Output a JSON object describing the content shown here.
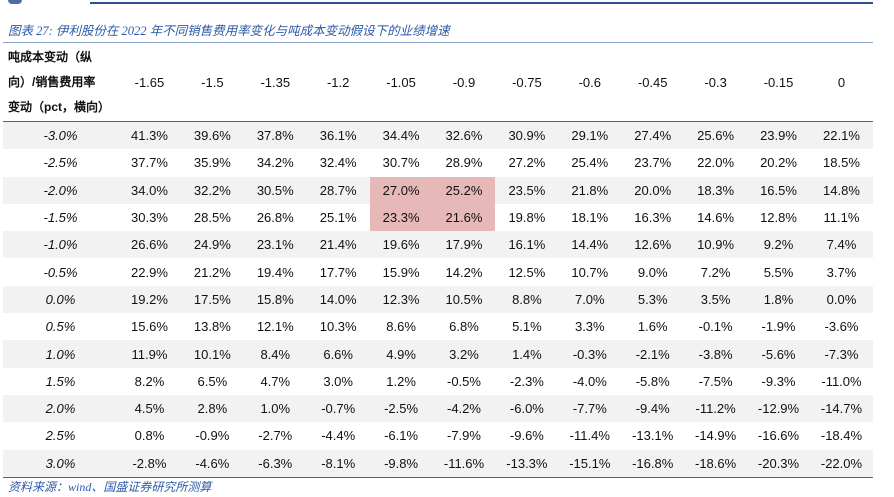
{
  "caption": "图表 27:  伊利股份在 2022 年不同销售费用率变化与吨成本变动假设下的业绩增速",
  "corner_header": [
    "吨成本变动（纵",
    "向）/销售费用率",
    "变动（pct，横向）"
  ],
  "columns": [
    "-1.65",
    "-1.5",
    "-1.35",
    "-1.2",
    "-1.05",
    "-0.9",
    "-0.75",
    "-0.6",
    "-0.45",
    "-0.3",
    "-0.15",
    "0"
  ],
  "highlight_color": "#e6b8b7",
  "rows": [
    {
      "label": "-3.0%",
      "values": [
        "41.3%",
        "39.6%",
        "37.8%",
        "36.1%",
        "34.4%",
        "32.6%",
        "30.9%",
        "29.1%",
        "27.4%",
        "25.6%",
        "23.9%",
        "22.1%"
      ]
    },
    {
      "label": "-2.5%",
      "values": [
        "37.7%",
        "35.9%",
        "34.2%",
        "32.4%",
        "30.7%",
        "28.9%",
        "27.2%",
        "25.4%",
        "23.7%",
        "22.0%",
        "20.2%",
        "18.5%"
      ]
    },
    {
      "label": "-2.0%",
      "values": [
        "34.0%",
        "32.2%",
        "30.5%",
        "28.7%",
        "27.0%",
        "25.2%",
        "23.5%",
        "21.8%",
        "20.0%",
        "18.3%",
        "16.5%",
        "14.8%"
      ],
      "highlight": [
        4,
        5
      ]
    },
    {
      "label": "-1.5%",
      "values": [
        "30.3%",
        "28.5%",
        "26.8%",
        "25.1%",
        "23.3%",
        "21.6%",
        "19.8%",
        "18.1%",
        "16.3%",
        "14.6%",
        "12.8%",
        "11.1%"
      ],
      "highlight": [
        4,
        5
      ]
    },
    {
      "label": "-1.0%",
      "values": [
        "26.6%",
        "24.9%",
        "23.1%",
        "21.4%",
        "19.6%",
        "17.9%",
        "16.1%",
        "14.4%",
        "12.6%",
        "10.9%",
        "9.2%",
        "7.4%"
      ]
    },
    {
      "label": "-0.5%",
      "values": [
        "22.9%",
        "21.2%",
        "19.4%",
        "17.7%",
        "15.9%",
        "14.2%",
        "12.5%",
        "10.7%",
        "9.0%",
        "7.2%",
        "5.5%",
        "3.7%"
      ]
    },
    {
      "label": "0.0%",
      "values": [
        "19.2%",
        "17.5%",
        "15.8%",
        "14.0%",
        "12.3%",
        "10.5%",
        "8.8%",
        "7.0%",
        "5.3%",
        "3.5%",
        "1.8%",
        "0.0%"
      ]
    },
    {
      "label": "0.5%",
      "values": [
        "15.6%",
        "13.8%",
        "12.1%",
        "10.3%",
        "8.6%",
        "6.8%",
        "5.1%",
        "3.3%",
        "1.6%",
        "-0.1%",
        "-1.9%",
        "-3.6%"
      ]
    },
    {
      "label": "1.0%",
      "values": [
        "11.9%",
        "10.1%",
        "8.4%",
        "6.6%",
        "4.9%",
        "3.2%",
        "1.4%",
        "-0.3%",
        "-2.1%",
        "-3.8%",
        "-5.6%",
        "-7.3%"
      ]
    },
    {
      "label": "1.5%",
      "values": [
        "8.2%",
        "6.5%",
        "4.7%",
        "3.0%",
        "1.2%",
        "-0.5%",
        "-2.3%",
        "-4.0%",
        "-5.8%",
        "-7.5%",
        "-9.3%",
        "-11.0%"
      ]
    },
    {
      "label": "2.0%",
      "values": [
        "4.5%",
        "2.8%",
        "1.0%",
        "-0.7%",
        "-2.5%",
        "-4.2%",
        "-6.0%",
        "-7.7%",
        "-9.4%",
        "-11.2%",
        "-12.9%",
        "-14.7%"
      ]
    },
    {
      "label": "2.5%",
      "values": [
        "0.8%",
        "-0.9%",
        "-2.7%",
        "-4.4%",
        "-6.1%",
        "-7.9%",
        "-9.6%",
        "-11.4%",
        "-13.1%",
        "-14.9%",
        "-16.6%",
        "-18.4%"
      ]
    },
    {
      "label": "3.0%",
      "values": [
        "-2.8%",
        "-4.6%",
        "-6.3%",
        "-8.1%",
        "-9.8%",
        "-11.6%",
        "-13.3%",
        "-15.1%",
        "-16.8%",
        "-18.6%",
        "-20.3%",
        "-22.0%"
      ]
    }
  ],
  "source": "资料来源：wind、国盛证券研究所测算"
}
